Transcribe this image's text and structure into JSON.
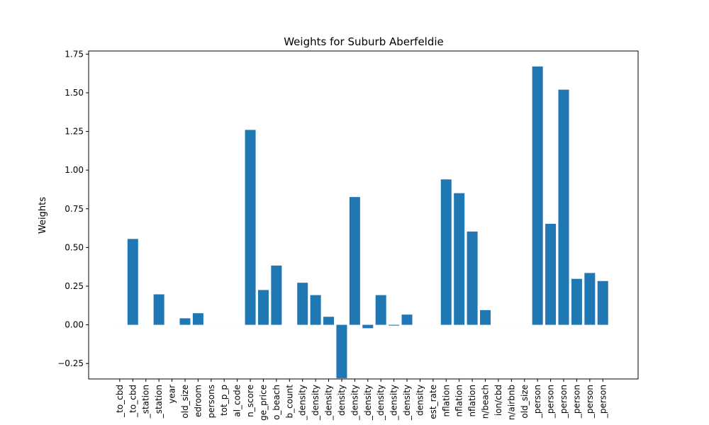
{
  "chart_data": {
    "type": "bar",
    "title": "Weights for Suburb Aberfeldie",
    "xlabel": "",
    "ylabel": "Weights",
    "ylim": [
      -0.35,
      1.77
    ],
    "yticks": [
      -0.25,
      0.0,
      0.25,
      0.5,
      0.75,
      1.0,
      1.25,
      1.5,
      1.75
    ],
    "ytick_labels": [
      "−0.25",
      "0.00",
      "0.25",
      "0.50",
      "0.75",
      "1.00",
      "1.25",
      "1.50",
      "1.75"
    ],
    "grid": false,
    "color": "#1f77b4",
    "categories": [
      "_to_cbd",
      "_to_cbd",
      "_station",
      "_station",
      "year",
      "old_size",
      "edroom",
      "persons",
      "tot_p_p",
      "al_code",
      "n_score",
      "ge_price",
      "o_beach",
      "b_count",
      "_density",
      "_density",
      "_density",
      "density",
      "_density",
      "_density",
      "_density",
      "_density",
      "_density",
      "density",
      "est_rate",
      "nflation",
      "nflation",
      "nflation",
      "n/beach",
      "ion/cbd",
      "n/airbnb",
      "old_size",
      "_person",
      "_person",
      "_person",
      "_person",
      "_person",
      "_person"
    ],
    "values": [
      0,
      0.555,
      0,
      0.197,
      0,
      0.042,
      0.075,
      0,
      0,
      0,
      1.26,
      0.225,
      0.383,
      0,
      0.272,
      0.192,
      0.052,
      -0.345,
      0.826,
      -0.022,
      0.192,
      -0.005,
      0.066,
      0,
      0,
      0.94,
      0.851,
      0.603,
      0.095,
      0,
      0,
      0,
      1.67,
      0.653,
      1.52,
      0.297,
      0.335,
      0.283
    ]
  }
}
